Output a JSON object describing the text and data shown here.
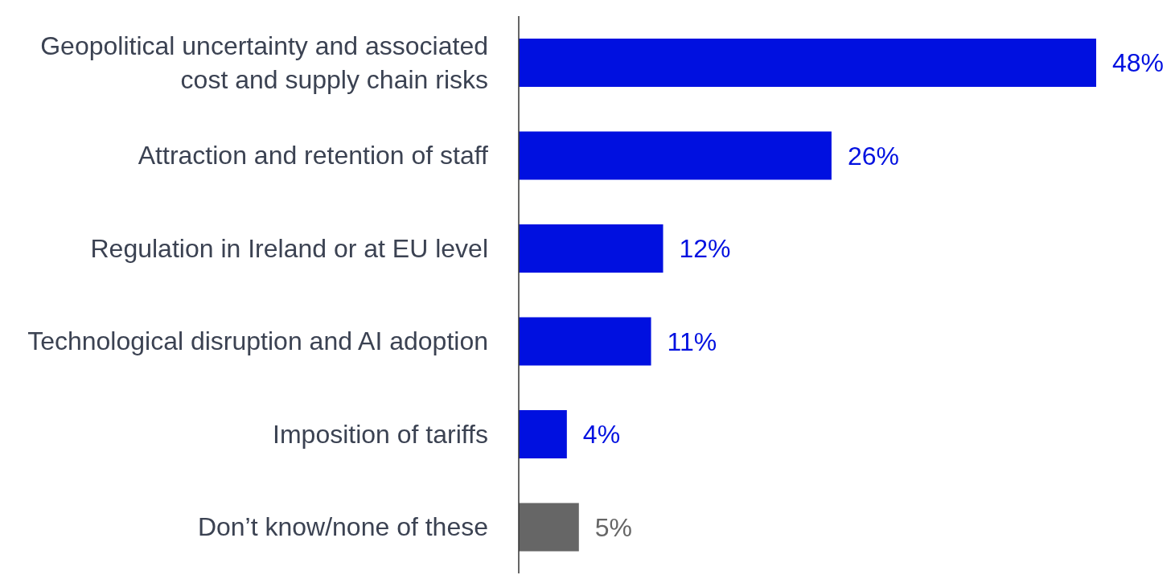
{
  "chart_data": {
    "type": "bar",
    "orientation": "horizontal",
    "categories": [
      "Geopolitical uncertainty and associated cost and supply chain risks",
      "Attraction and retention of staff",
      "Regulation in Ireland or at EU level",
      "Technological disruption and AI adoption",
      "Imposition of tariffs",
      "Don’t know/none of these"
    ],
    "values": [
      48,
      26,
      12,
      11,
      4,
      5
    ],
    "colors": [
      "#0010e0",
      "#0010e0",
      "#0010e0",
      "#0010e0",
      "#0010e0",
      "#666666"
    ],
    "value_labels": [
      "48%",
      "26%",
      "12%",
      "11%",
      "4%",
      "5%"
    ]
  }
}
